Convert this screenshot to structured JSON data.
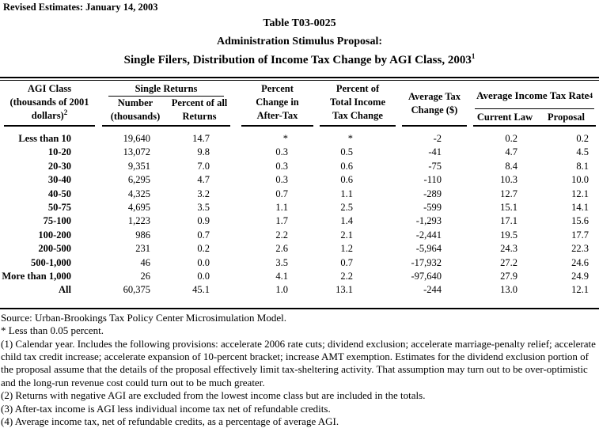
{
  "document": {
    "revision_note": "Revised Estimates: January 14, 2003",
    "titles": {
      "table_number": "Table T03-0025",
      "subtitle": "Administration Stimulus Proposal:",
      "main_title": "Single Filers, Distribution of Income Tax Change by AGI Class, 2003",
      "main_title_footnote_ref": "1"
    }
  },
  "table": {
    "column_headers": {
      "agi_class": "AGI Class\n(thousands of 2001\ndollars)",
      "agi_class_footnote_ref": "2",
      "single_returns_group": "Single Returns",
      "number_thousands": "Number\n(thousands)",
      "percent_of_all_returns": "Percent of all\nReturns",
      "percent_change_after_tax": "Percent\nChange in\nAfter-Tax",
      "percent_total_income_tax_change": "Percent of\nTotal Income\nTax Change",
      "average_tax_change": "Average Tax\nChange ($)",
      "average_income_tax_rate_group": "Average Income Tax Rate",
      "average_income_tax_rate_footnote_ref": "4",
      "current_law": "Current Law",
      "proposal": "Proposal"
    },
    "rows": [
      {
        "agi_class": "Less than 10",
        "number_thousands": "19,640",
        "percent_of_all_returns": "14.7",
        "percent_change_after_tax": "*",
        "percent_total_income_tax_change": "*",
        "average_tax_change": "-2",
        "current_law": "0.2",
        "proposal": "0.2"
      },
      {
        "agi_class": "10-20",
        "number_thousands": "13,072",
        "percent_of_all_returns": "9.8",
        "percent_change_after_tax": "0.3",
        "percent_total_income_tax_change": "0.5",
        "average_tax_change": "-41",
        "current_law": "4.7",
        "proposal": "4.5"
      },
      {
        "agi_class": "20-30",
        "number_thousands": "9,351",
        "percent_of_all_returns": "7.0",
        "percent_change_after_tax": "0.3",
        "percent_total_income_tax_change": "0.6",
        "average_tax_change": "-75",
        "current_law": "8.4",
        "proposal": "8.1"
      },
      {
        "agi_class": "30-40",
        "number_thousands": "6,295",
        "percent_of_all_returns": "4.7",
        "percent_change_after_tax": "0.3",
        "percent_total_income_tax_change": "0.6",
        "average_tax_change": "-110",
        "current_law": "10.3",
        "proposal": "10.0"
      },
      {
        "agi_class": "40-50",
        "number_thousands": "4,325",
        "percent_of_all_returns": "3.2",
        "percent_change_after_tax": "0.7",
        "percent_total_income_tax_change": "1.1",
        "average_tax_change": "-289",
        "current_law": "12.7",
        "proposal": "12.1"
      },
      {
        "agi_class": "50-75",
        "number_thousands": "4,695",
        "percent_of_all_returns": "3.5",
        "percent_change_after_tax": "1.1",
        "percent_total_income_tax_change": "2.5",
        "average_tax_change": "-599",
        "current_law": "15.1",
        "proposal": "14.1"
      },
      {
        "agi_class": "75-100",
        "number_thousands": "1,223",
        "percent_of_all_returns": "0.9",
        "percent_change_after_tax": "1.7",
        "percent_total_income_tax_change": "1.4",
        "average_tax_change": "-1,293",
        "current_law": "17.1",
        "proposal": "15.6"
      },
      {
        "agi_class": "100-200",
        "number_thousands": "986",
        "percent_of_all_returns": "0.7",
        "percent_change_after_tax": "2.2",
        "percent_total_income_tax_change": "2.1",
        "average_tax_change": "-2,441",
        "current_law": "19.5",
        "proposal": "17.7"
      },
      {
        "agi_class": "200-500",
        "number_thousands": "231",
        "percent_of_all_returns": "0.2",
        "percent_change_after_tax": "2.6",
        "percent_total_income_tax_change": "1.2",
        "average_tax_change": "-5,964",
        "current_law": "24.3",
        "proposal": "22.3"
      },
      {
        "agi_class": "500-1,000",
        "number_thousands": "46",
        "percent_of_all_returns": "0.0",
        "percent_change_after_tax": "3.5",
        "percent_total_income_tax_change": "0.7",
        "average_tax_change": "-17,932",
        "current_law": "27.2",
        "proposal": "24.6"
      },
      {
        "agi_class": "More than 1,000",
        "number_thousands": "26",
        "percent_of_all_returns": "0.0",
        "percent_change_after_tax": "4.1",
        "percent_total_income_tax_change": "2.2",
        "average_tax_change": "-97,640",
        "current_law": "27.9",
        "proposal": "24.9"
      },
      {
        "agi_class": "All",
        "number_thousands": "60,375",
        "percent_of_all_returns": "45.1",
        "percent_change_after_tax": "1.0",
        "percent_total_income_tax_change": "13.1",
        "average_tax_change": "-244",
        "current_law": "13.0",
        "proposal": "12.1"
      }
    ]
  },
  "footnotes": {
    "source": "Source: Urban-Brookings Tax Policy Center Microsimulation Model.",
    "asterisk": "* Less than 0.05 percent.",
    "note1": "(1) Calendar year. Includes the following provisions: accelerate 2006 rate cuts; dividend exclusion; accelerate marriage-penalty relief; accelerate child tax credit increase; accelerate expansion of 10-percent bracket; increase AMT exemption. Estimates for the dividend exclusion portion of the proposal assume that the details of the proposal effectively limit tax-sheltering activity.  That assumption may turn out to be over-optimistic and the long-run revenue cost could turn out to be much greater.",
    "note2": "(2) Returns with negative AGI are excluded from the lowest income class but are included in the totals.",
    "note3": "(3) After-tax income is AGI less individual income tax net of refundable credits.",
    "note4": "(4) Average income tax, net of refundable credits, as a percentage of average AGI."
  }
}
